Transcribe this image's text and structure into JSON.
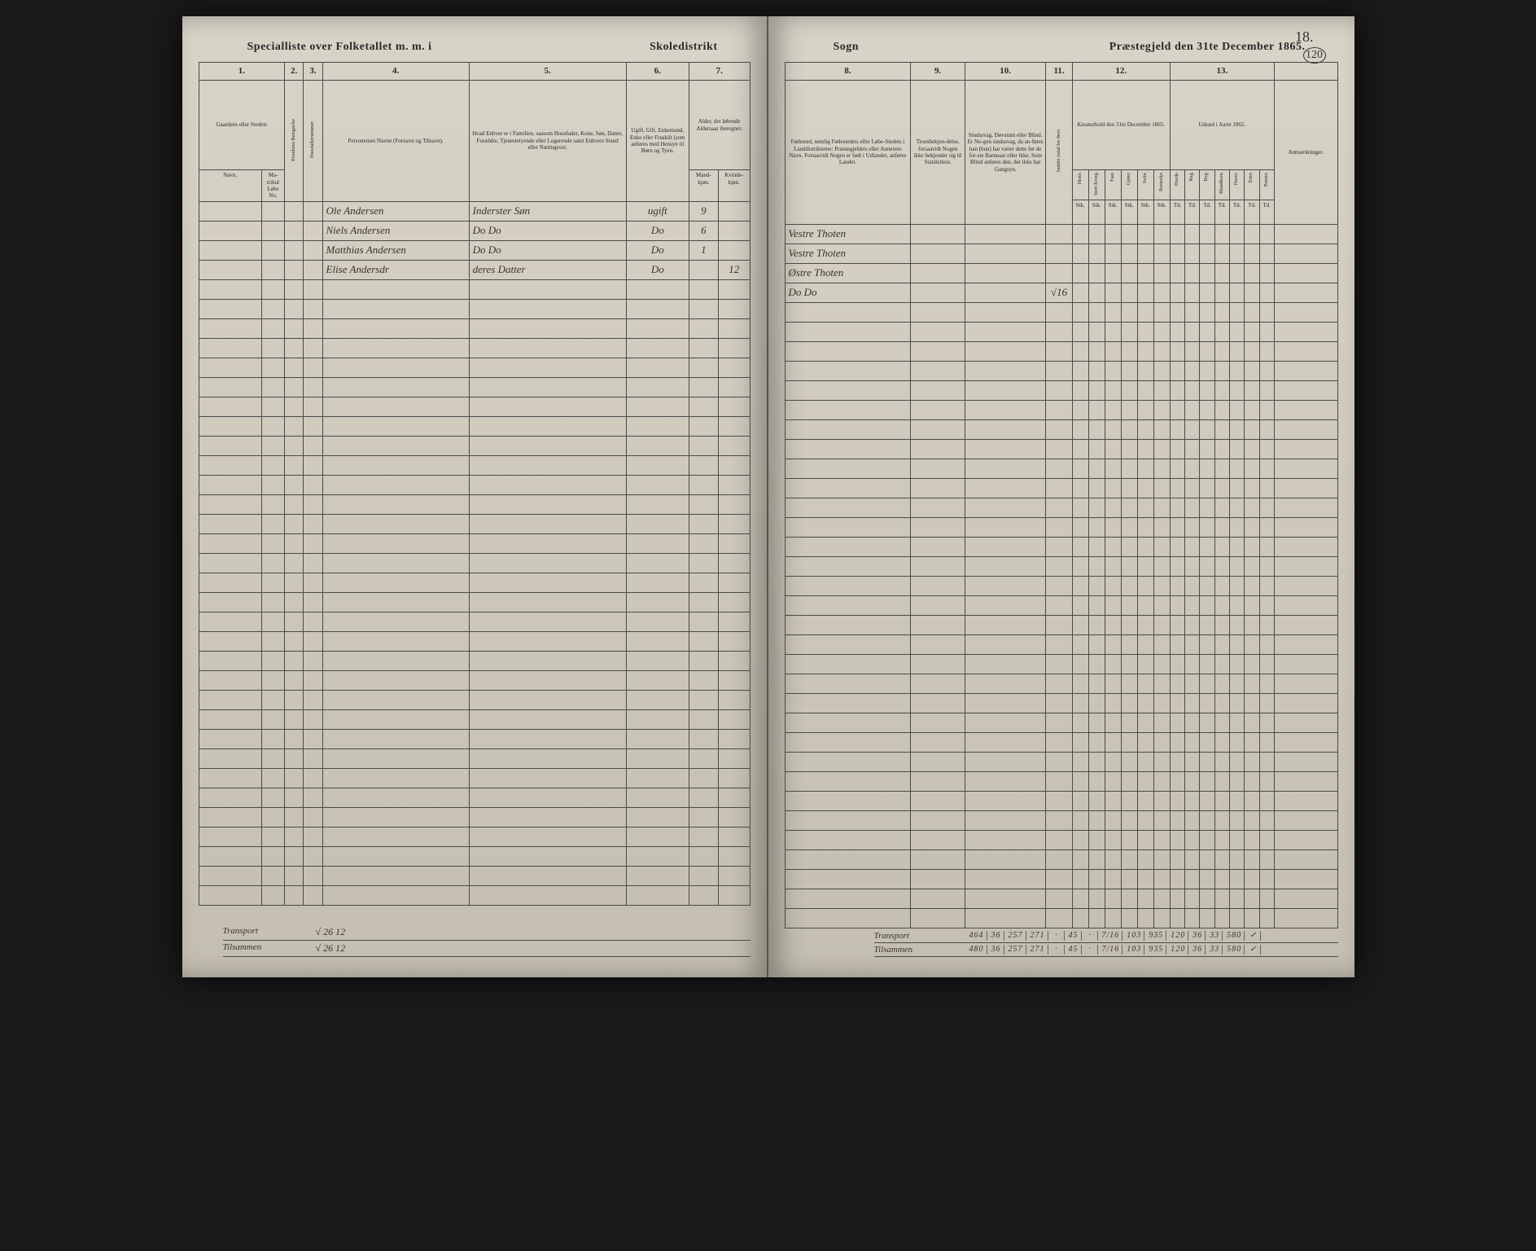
{
  "document": {
    "title_left_1": "Specialliste over Folketallet m. m. i",
    "title_left_2": "Skoledistrikt",
    "title_right_1": "Sogn",
    "title_right_2": "Præstegjeld den 31te December 1865.",
    "page_number_top": "18.",
    "circled_number": "120"
  },
  "columns_left": {
    "nums": [
      "1.",
      "2.",
      "3.",
      "4.",
      "5.",
      "6.",
      "7."
    ],
    "h1": "Gaardens eller Stedets",
    "h1_sub1": "Navn.",
    "h1_sub2": "Ma-\ntrikul\nLøbe\nNo.",
    "h2": "Eiendoms Betegnelse",
    "h3": "Huusfadernummer",
    "h4": "Personernes Navne (Fornavn og Tilnavn).",
    "h5": "Hvad Enhver er i Familien, saasom Huusfader, Kone, Søn, Datter, Forældre, Tjenestetyende eller Logerende samt Enhvers Stand eller Næringsvei.",
    "h6": "Ugift, Gift, Enkemand, Enke eller Fraskilt (som anføres med Hensyn til Børn og Tyen.",
    "h7": "Alder, det løbende Aldersaar iberegnet.",
    "h7_sub1": "Mand-\nkjøn.",
    "h7_sub2": "Kvinde-\nkjøn."
  },
  "columns_right": {
    "nums": [
      "8.",
      "9.",
      "10.",
      "11.",
      "12.",
      "13."
    ],
    "h8": "Fødested, nemlig Fødestedets eller Løbe-Stedets i Landdistrikterne: Præstegjeldets eller Annexets Navn. Forsaavidt Nogen er født i Udlandet, anføres Landet.",
    "h9": "Troesbekjen-delse, forsaavidt Nogen ikke bekjender sig til Statskirken.",
    "h10": "Sindssvag, Døvstum eller Blind. Er No-gen sindssvag, da an-føres han (hun) har været dette før de for-ste Barneaar eller ikke. Som Blind anføres den, der ikke har Gangsyn.",
    "h11": "Samlet Antal for derri",
    "h12_title": "Kreaturhold den 31te December 1865.",
    "h12_subs": [
      "Heste.",
      "Stort Kvæg.",
      "Faar.",
      "Gjeter.",
      "Sviin.",
      "Reensdyr."
    ],
    "h13_title": "Udsæd i Aaret 1865.",
    "h13_subs": [
      "Hvede.",
      "Rug.",
      "Byg.",
      "Blandkorn.",
      "Havre.",
      "Erter.",
      "Poteter."
    ],
    "h_remarks": "Anmærkninger.",
    "unit_row": [
      "Stk.",
      "Stk.",
      "Stk.",
      "Stk.",
      "Stk.",
      "Stk.",
      "Td.",
      "Td.",
      "Td.",
      "Td.",
      "Td.",
      "Td.",
      "Td."
    ]
  },
  "rows_left": [
    {
      "name": "Ole Andersen",
      "role": "Inderster Søn",
      "status": "ugift",
      "age_m": "9",
      "age_f": ""
    },
    {
      "name": "Niels Andersen",
      "role": "Do   Do",
      "status": "Do",
      "age_m": "6",
      "age_f": ""
    },
    {
      "name": "Matthias Andersen",
      "role": "Do   Do",
      "status": "Do",
      "age_m": "1",
      "age_f": ""
    },
    {
      "name": "Elise Andersdr",
      "role": "deres Datter",
      "status": "Do",
      "age_m": "",
      "age_f": "12"
    }
  ],
  "rows_right": [
    {
      "place": "Vestre Thoten",
      "c11": ""
    },
    {
      "place": "Vestre Thoten",
      "c11": ""
    },
    {
      "place": "Østre Thoten",
      "c11": ""
    },
    {
      "place": "Do   Do",
      "c11": "√16"
    }
  ],
  "footer_left": {
    "transport_label": "Transport",
    "tilsammen_label": "Tilsammen",
    "transport_vals": "√ 26 12",
    "tilsammen_vals": "√ 26 12"
  },
  "footer_right": {
    "transport_label": "Transport",
    "tilsammen_label": "Tilsammen",
    "transport_vals": [
      "464",
      "36",
      "257",
      "271",
      "·",
      "45",
      "·",
      "7/16",
      "103",
      "935",
      "120",
      "36",
      "33",
      "580",
      "✓"
    ],
    "tilsammen_vals": [
      "480",
      "36",
      "257",
      "271",
      "·",
      "45",
      "·",
      "7/16",
      "103",
      "935",
      "120",
      "36",
      "33",
      "580",
      "✓"
    ]
  },
  "empty_row_count": 32,
  "colors": {
    "paper": "#d8d4c8",
    "ink": "#2a2a2a",
    "handwriting": "#3a3428",
    "rule": "#4a4a4a"
  }
}
